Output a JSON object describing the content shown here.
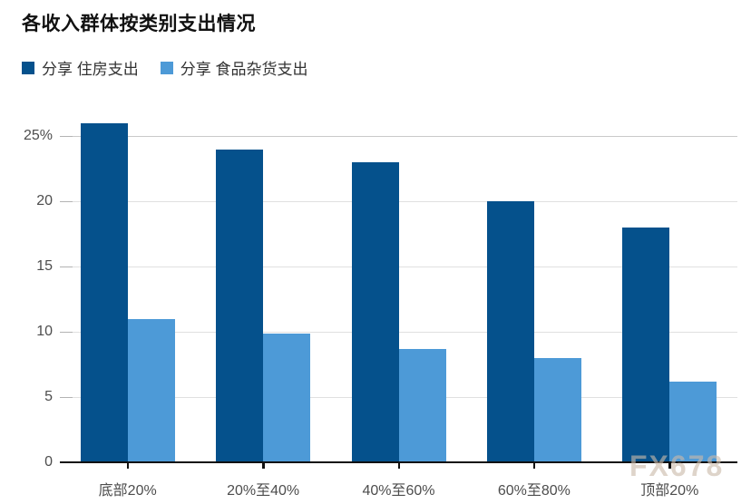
{
  "title": "各收入群体按类别支出情况",
  "legend": {
    "items": [
      {
        "label": "分享 住房支出",
        "color": "#05518c"
      },
      {
        "label": "分享 食品杂货支出",
        "color": "#4d9ad7"
      }
    ]
  },
  "watermark": "FX678",
  "colors": {
    "housing": "#05518c",
    "groceries": "#4d9ad7",
    "gridline": "#e0e0e0",
    "gridline_top": "#c9c9c9",
    "axis": "#111111",
    "tick_label": "#4d4d4d"
  },
  "chart_data": {
    "type": "bar",
    "title": "各收入群体按类别支出情况",
    "categories": [
      "底部20%",
      "20%至40%",
      "40%至60%",
      "60%至80%",
      "顶部20%"
    ],
    "series": [
      {
        "name": "分享 住房支出",
        "color": "#05518c",
        "values": [
          26,
          24,
          23,
          20,
          18
        ]
      },
      {
        "name": "分享 食品杂货支出",
        "color": "#4d9ad7",
        "values": [
          11,
          9.9,
          8.7,
          8,
          6.2
        ]
      }
    ],
    "xlabel": "",
    "ylabel": "",
    "ylim": [
      0,
      26.4
    ],
    "yticks": [
      {
        "value": 0,
        "label": "0"
      },
      {
        "value": 5,
        "label": "5"
      },
      {
        "value": 10,
        "label": "10"
      },
      {
        "value": 15,
        "label": "15"
      },
      {
        "value": 20,
        "label": "20"
      },
      {
        "value": 25,
        "label": "25%"
      }
    ],
    "grid": true,
    "legend_position": "top"
  }
}
